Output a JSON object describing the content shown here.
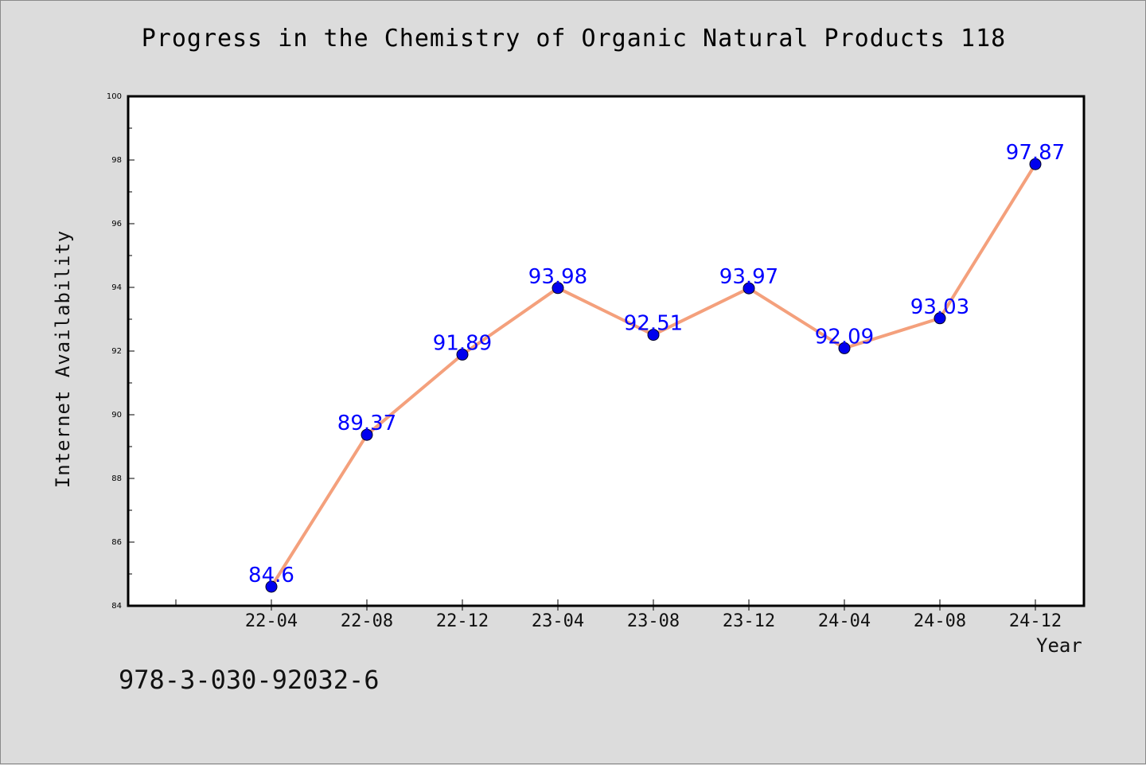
{
  "title": "Progress in the Chemistry of Organic Natural Products 118",
  "footer_text": "978-3-030-92032-6",
  "colors": {
    "background": "#dcdcdc",
    "plot_background": "#ffffff",
    "line": "#f4a07c",
    "marker": "#0000ee",
    "data_label": "#0000ff"
  },
  "chart_data": {
    "type": "line",
    "title": "Progress in the Chemistry of Organic Natural Products 118",
    "xlabel": "Year",
    "ylabel": "Internet Availability",
    "categories": [
      "22-04",
      "22-08",
      "22-12",
      "23-04",
      "23-08",
      "23-12",
      "24-04",
      "24-08",
      "24-12"
    ],
    "series": [
      {
        "values": [
          84.6,
          89.37,
          91.89,
          93.98,
          92.51,
          93.97,
          92.09,
          93.03,
          97.87
        ]
      }
    ],
    "data_labels": [
      "84.6",
      "89.37",
      "91.89",
      "93.98",
      "92.51",
      "93.97",
      "92.09",
      "93.03",
      "97.87"
    ],
    "ylim": [
      84,
      100
    ],
    "yticks": [
      "84",
      "86",
      "88",
      "90",
      "92",
      "94",
      "96",
      "98",
      "100"
    ],
    "grid": false,
    "legend": "none"
  }
}
